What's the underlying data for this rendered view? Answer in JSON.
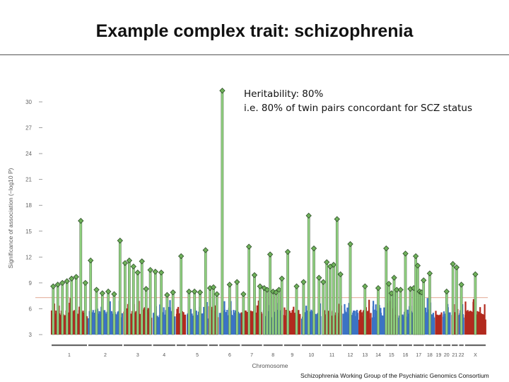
{
  "slide": {
    "title": "Example complex trait: schizophrenia",
    "note_line1": "Heritability: 80%",
    "note_line2": "i.e. 80% of twin pairs concordant for SCZ status",
    "credit": "Schizophrenia Working Group of the Psychiatric Genomics Consortium"
  },
  "chart_data": {
    "type": "scatter",
    "subtype": "manhattan",
    "xlabel": "Chromosome",
    "ylabel": "Significance of association (−log10 P)",
    "ylim": [
      3,
      31
    ],
    "yticks": [
      "3",
      "6",
      "9",
      "12",
      "15",
      "18",
      "21",
      "24",
      "27",
      "30"
    ],
    "significance_threshold": 7.3,
    "colors": {
      "odd_chromosomes": "#b22a1e",
      "even_chromosomes": "#3b73c4",
      "significant_loci": "#8fd07f",
      "index_snp": "#6fb25a",
      "threshold_line": "#e8b9a8"
    },
    "chromosomes": [
      {
        "label": "1",
        "loci": [
          8.6,
          8.8,
          9.0,
          9.2,
          9.5,
          9.7,
          16.2,
          9.0
        ]
      },
      {
        "label": "2",
        "loci": [
          11.6,
          8.2,
          7.8,
          8.0,
          7.7,
          13.9
        ]
      },
      {
        "label": "3",
        "loci": [
          11.3,
          11.6,
          10.9,
          10.2,
          11.5,
          8.3,
          10.5
        ]
      },
      {
        "label": "4",
        "loci": [
          10.3,
          10.2,
          7.6,
          7.9
        ]
      },
      {
        "label": "",
        "loci": [
          12.1
        ]
      },
      {
        "label": "5",
        "loci": [
          8.0,
          8.0,
          7.9,
          12.8
        ]
      },
      {
        "label": "",
        "loci": [
          8.4,
          8.5,
          7.7
        ]
      },
      {
        "label": "6",
        "loci": [
          31.3,
          8.8,
          9.1
        ]
      },
      {
        "label": "7",
        "loci": [
          7.7,
          13.2,
          9.9,
          8.6
        ]
      },
      {
        "label": "8",
        "loci": [
          8.4,
          8.2,
          12.3,
          8.0,
          7.9,
          8.2,
          9.5
        ]
      },
      {
        "label": "9",
        "loci": [
          12.6,
          8.6
        ]
      },
      {
        "label": "10",
        "loci": [
          9.1,
          16.8,
          13.0,
          9.6
        ]
      },
      {
        "label": "11",
        "loci": [
          9.1,
          11.4,
          10.9,
          11.1,
          16.4,
          10.0
        ]
      },
      {
        "label": "12",
        "loci": [
          13.5
        ]
      },
      {
        "label": "13",
        "loci": [
          8.6
        ]
      },
      {
        "label": "14",
        "loci": [
          8.4
        ]
      },
      {
        "label": "15",
        "loci": [
          13.0,
          8.9,
          7.8,
          9.6,
          8.2
        ]
      },
      {
        "label": "16",
        "loci": [
          8.2,
          12.4,
          8.3
        ]
      },
      {
        "label": "17",
        "loci": [
          8.4,
          12.1,
          11.0,
          8.0,
          7.9,
          9.3
        ]
      },
      {
        "label": "18",
        "loci": [
          10.1
        ]
      },
      {
        "label": "19",
        "loci": []
      },
      {
        "label": "20",
        "loci": [
          8.0
        ]
      },
      {
        "label": "21",
        "loci": [
          11.2,
          10.8
        ]
      },
      {
        "label": "22",
        "loci": [
          8.8
        ]
      },
      {
        "label": "X",
        "loci": [
          10.0
        ]
      }
    ]
  }
}
